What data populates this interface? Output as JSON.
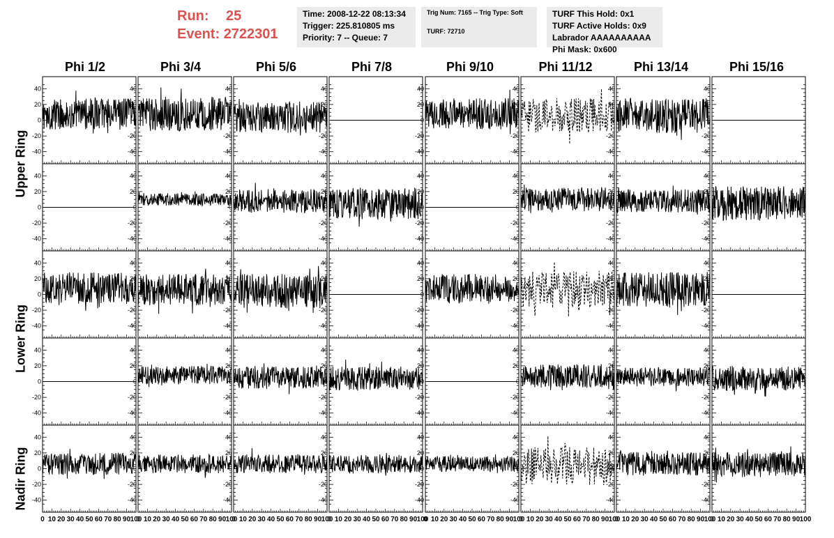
{
  "header": {
    "run_label": "Run:",
    "run_value": "25",
    "event_label": "Event:",
    "event_value": "2722301",
    "time_line": "Time: 2008-12-22 08:13:34",
    "trigger_line": "Trigger: 225.810805 ms",
    "priority_line": "Priority: 7 -- Queue: 7",
    "trig_num_line": "Trig Num: 7165 -- Trig Type: Soft",
    "turf_line": "TURF: 72710",
    "turf_hold_line": "TURF This Hold: 0x1",
    "turf_active_line": "TURF Active Holds: 0x9",
    "labrador_line": "Labrador AAAAAAAAAA",
    "phi_mask_line": "Phi Mask: 0x600"
  },
  "columns": [
    "Phi 1/2",
    "Phi 3/4",
    "Phi 5/6",
    "Phi 7/8",
    "Phi 9/10",
    "Phi 11/12",
    "Phi 13/14",
    "Phi 15/16"
  ],
  "rings": [
    "Upper Ring",
    "Lower Ring",
    "Nadir Ring"
  ],
  "chart_data": {
    "type": "line",
    "rows": 5,
    "cols": 8,
    "xlim": [
      0,
      100
    ],
    "ylim": [
      -50,
      50
    ],
    "y_ticks": [
      -40,
      -20,
      0,
      20,
      40
    ],
    "x_ticks": [
      0,
      10,
      20,
      30,
      40,
      50,
      60,
      70,
      80,
      90,
      100
    ],
    "x_tick_labels": [
      "0",
      "10",
      "20",
      "30",
      "40",
      "50",
      "60",
      "70",
      "80",
      "90",
      "100"
    ],
    "panels": [
      {
        "row": 0,
        "col": 0,
        "style": "noise",
        "amp": 20,
        "offset": 8
      },
      {
        "row": 0,
        "col": 1,
        "style": "noise",
        "amp": 22,
        "offset": 8
      },
      {
        "row": 0,
        "col": 2,
        "style": "noise",
        "amp": 20,
        "offset": 4
      },
      {
        "row": 0,
        "col": 3,
        "style": "flat",
        "amp": 0,
        "offset": 0
      },
      {
        "row": 0,
        "col": 4,
        "style": "noise",
        "amp": 20,
        "offset": 8
      },
      {
        "row": 0,
        "col": 5,
        "style": "dashed",
        "amp": 22,
        "offset": 6
      },
      {
        "row": 0,
        "col": 6,
        "style": "noise",
        "amp": 22,
        "offset": 6
      },
      {
        "row": 0,
        "col": 7,
        "style": "flat",
        "amp": 0,
        "offset": 0
      },
      {
        "row": 1,
        "col": 0,
        "style": "flat",
        "amp": 0,
        "offset": 0
      },
      {
        "row": 1,
        "col": 1,
        "style": "noise",
        "amp": 8,
        "offset": 10
      },
      {
        "row": 1,
        "col": 2,
        "style": "noise",
        "amp": 15,
        "offset": 8
      },
      {
        "row": 1,
        "col": 3,
        "style": "noise",
        "amp": 20,
        "offset": 5
      },
      {
        "row": 1,
        "col": 4,
        "style": "flat",
        "amp": 0,
        "offset": 0
      },
      {
        "row": 1,
        "col": 5,
        "style": "noise",
        "amp": 15,
        "offset": 10
      },
      {
        "row": 1,
        "col": 6,
        "style": "noise",
        "amp": 15,
        "offset": 8
      },
      {
        "row": 1,
        "col": 7,
        "style": "noise",
        "amp": 22,
        "offset": 5
      },
      {
        "row": 2,
        "col": 0,
        "style": "noise",
        "amp": 20,
        "offset": 8
      },
      {
        "row": 2,
        "col": 1,
        "style": "noise",
        "amp": 20,
        "offset": 6
      },
      {
        "row": 2,
        "col": 2,
        "style": "noise",
        "amp": 22,
        "offset": 4
      },
      {
        "row": 2,
        "col": 3,
        "style": "flat",
        "amp": 0,
        "offset": 0
      },
      {
        "row": 2,
        "col": 4,
        "style": "noise",
        "amp": 18,
        "offset": 8
      },
      {
        "row": 2,
        "col": 5,
        "style": "dashed",
        "amp": 24,
        "offset": 6
      },
      {
        "row": 2,
        "col": 6,
        "style": "noise",
        "amp": 22,
        "offset": 6
      },
      {
        "row": 2,
        "col": 7,
        "style": "flat",
        "amp": 0,
        "offset": 0
      },
      {
        "row": 3,
        "col": 0,
        "style": "flat",
        "amp": 0,
        "offset": 0
      },
      {
        "row": 3,
        "col": 1,
        "style": "noise",
        "amp": 12,
        "offset": 8
      },
      {
        "row": 3,
        "col": 2,
        "style": "noise",
        "amp": 14,
        "offset": 5
      },
      {
        "row": 3,
        "col": 3,
        "style": "noise",
        "amp": 15,
        "offset": 4
      },
      {
        "row": 3,
        "col": 4,
        "style": "flat",
        "amp": 0,
        "offset": 0
      },
      {
        "row": 3,
        "col": 5,
        "style": "noise",
        "amp": 15,
        "offset": 7
      },
      {
        "row": 3,
        "col": 6,
        "style": "noise",
        "amp": 12,
        "offset": 6
      },
      {
        "row": 3,
        "col": 7,
        "style": "noise",
        "amp": 16,
        "offset": 4
      },
      {
        "row": 4,
        "col": 0,
        "style": "noise",
        "amp": 14,
        "offset": 6
      },
      {
        "row": 4,
        "col": 1,
        "style": "noise",
        "amp": 12,
        "offset": 6
      },
      {
        "row": 4,
        "col": 2,
        "style": "noise",
        "amp": 12,
        "offset": 6
      },
      {
        "row": 4,
        "col": 3,
        "style": "noise",
        "amp": 12,
        "offset": 6
      },
      {
        "row": 4,
        "col": 4,
        "style": "noise",
        "amp": 10,
        "offset": 6
      },
      {
        "row": 4,
        "col": 5,
        "style": "dashed",
        "amp": 25,
        "offset": 4
      },
      {
        "row": 4,
        "col": 6,
        "style": "noise",
        "amp": 15,
        "offset": 6
      },
      {
        "row": 4,
        "col": 7,
        "style": "noise",
        "amp": 16,
        "offset": 5
      }
    ]
  }
}
